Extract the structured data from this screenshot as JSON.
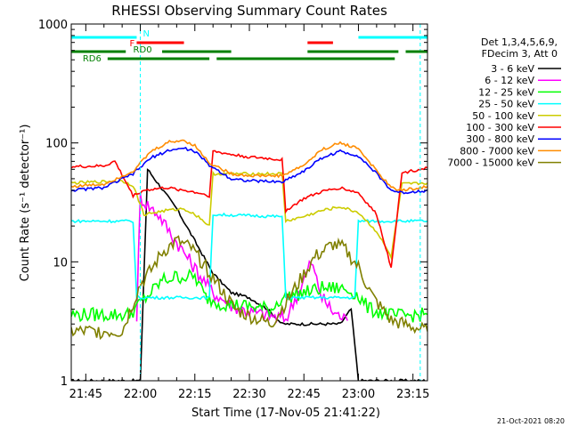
{
  "chart_data": {
    "type": "line",
    "title": "RHESSI Observing Summary Count Rates",
    "xlabel": "Start Time (17-Nov-05 21:41:22)",
    "ylabel": "Count Rate (s⁻¹ detector⁻¹)",
    "yscale": "log",
    "ylim": [
      1,
      1000
    ],
    "xlim": [
      "21:41",
      "23:19"
    ],
    "xticks": [
      "21:45",
      "22:00",
      "22:15",
      "22:30",
      "22:45",
      "23:00",
      "23:15"
    ],
    "yticks": [
      "1",
      "10",
      "100",
      "1000"
    ],
    "date_stamp": "21-Oct-2021 08:20",
    "legend_header": [
      "Det 1,3,4,5,6,9,",
      "FDecim 3, Att 0"
    ],
    "series": [
      {
        "name": "3 - 6 keV",
        "color": "#000000",
        "x": [
          "21:41",
          "21:58",
          "22:00",
          "22:02",
          "22:05",
          "22:10",
          "22:15",
          "22:20",
          "22:25",
          "22:30",
          "22:35",
          "22:39",
          "22:42",
          "22:45",
          "22:50",
          "22:55",
          "22:58",
          "23:00",
          "23:03",
          "23:10",
          "23:19"
        ],
        "y": [
          1.0,
          1.0,
          1.0,
          60,
          45,
          28,
          15,
          8,
          5.5,
          5,
          4,
          3,
          3,
          3,
          3,
          3,
          4,
          1.0,
          1.0,
          1.0,
          1.0
        ]
      },
      {
        "name": "6 - 12 keV",
        "color": "#ff00ff",
        "x": [
          "21:59",
          "22:00",
          "22:02",
          "22:05",
          "22:08",
          "22:12",
          "22:16",
          "22:20",
          "22:25",
          "22:30",
          "22:36",
          "22:40",
          "22:44",
          "22:47",
          "22:50",
          "22:53",
          "22:57"
        ],
        "y": [
          3.5,
          35,
          30,
          25,
          18,
          12,
          8,
          5.5,
          4.3,
          3.8,
          3.5,
          3.3,
          6,
          10,
          5,
          3.8,
          3.2
        ]
      },
      {
        "name": "12 - 25 keV",
        "color": "#00ff00",
        "x": [
          "21:41",
          "21:57",
          "22:00",
          "22:03",
          "22:06",
          "22:10",
          "22:15",
          "22:18",
          "22:22",
          "22:30",
          "22:36",
          "22:39",
          "22:45",
          "22:50",
          "22:55",
          "22:59",
          "23:03",
          "23:10",
          "23:19"
        ],
        "y": [
          3.6,
          3.6,
          4.5,
          5.5,
          7,
          7.5,
          7.5,
          5,
          4.5,
          4.2,
          4,
          5,
          5.5,
          6,
          6,
          5.5,
          4,
          3.5,
          3.6
        ]
      },
      {
        "name": "25 - 50 keV",
        "color": "#00ffff",
        "x": [
          "21:41",
          "21:58",
          "21:59",
          "22:05",
          "22:19",
          "22:20",
          "22:39",
          "22:40",
          "22:50",
          "22:59",
          "23:00",
          "23:10",
          "23:13",
          "23:19"
        ],
        "y": [
          22,
          22,
          5,
          5,
          5,
          25,
          24,
          5,
          5,
          5,
          22,
          22,
          22,
          22
        ]
      },
      {
        "name": "50 - 100 keV",
        "color": "#cccc00",
        "x": [
          "21:41",
          "21:55",
          "21:58",
          "22:01",
          "22:07",
          "22:12",
          "22:16",
          "22:19",
          "22:20",
          "22:30",
          "22:39",
          "22:40",
          "22:45",
          "22:50",
          "22:55",
          "23:00",
          "23:05",
          "23:09",
          "23:12",
          "23:19"
        ],
        "y": [
          46,
          48,
          44,
          25,
          27,
          28,
          24,
          20,
          55,
          55,
          55,
          22,
          24,
          27,
          29,
          26,
          18,
          11,
          45,
          46
        ]
      },
      {
        "name": "100 - 300 keV",
        "color": "#ff0000",
        "x": [
          "21:41",
          "21:50",
          "21:53",
          "21:58",
          "22:01",
          "22:07",
          "22:12",
          "22:16",
          "22:19",
          "22:20",
          "22:25",
          "22:30",
          "22:35",
          "22:39",
          "22:40",
          "22:45",
          "22:50",
          "22:55",
          "23:00",
          "23:05",
          "23:09",
          "23:12",
          "23:19"
        ],
        "y": [
          63,
          64,
          70,
          36,
          40,
          42,
          40,
          38,
          36,
          85,
          80,
          76,
          74,
          72,
          27,
          34,
          39,
          42,
          38,
          25,
          9,
          56,
          62
        ]
      },
      {
        "name": "300 - 800 keV",
        "color": "#0000ff",
        "x": [
          "21:41",
          "21:50",
          "21:58",
          "22:03",
          "22:08",
          "22:12",
          "22:15",
          "22:19",
          "22:25",
          "22:30",
          "22:39",
          "22:45",
          "22:50",
          "22:55",
          "23:00",
          "23:05",
          "23:09",
          "23:12",
          "23:19"
        ],
        "y": [
          40,
          42,
          55,
          75,
          87,
          90,
          85,
          65,
          50,
          48,
          47,
          58,
          75,
          85,
          78,
          55,
          40,
          38,
          40
        ]
      },
      {
        "name": "800 - 7000 keV",
        "color": "#ff8c00",
        "x": [
          "21:41",
          "21:50",
          "21:58",
          "22:03",
          "22:08",
          "22:12",
          "22:15",
          "22:19",
          "22:25",
          "22:30",
          "22:39",
          "22:45",
          "22:50",
          "22:55",
          "23:00",
          "23:05",
          "23:09",
          "23:12",
          "23:19"
        ],
        "y": [
          43,
          45,
          58,
          85,
          102,
          105,
          95,
          68,
          55,
          53,
          53,
          65,
          88,
          100,
          90,
          58,
          42,
          40,
          43
        ]
      },
      {
        "name": "7000 - 15000 keV",
        "color": "#808000",
        "x": [
          "21:41",
          "21:55",
          "22:00",
          "22:03",
          "22:06",
          "22:10",
          "22:14",
          "22:18",
          "22:22",
          "22:26",
          "22:30",
          "22:36",
          "22:40",
          "22:44",
          "22:48",
          "22:53",
          "22:56",
          "23:00",
          "23:04",
          "23:09",
          "23:19"
        ],
        "y": [
          2.6,
          2.6,
          6.5,
          8.5,
          12,
          15,
          13,
          9,
          6,
          4,
          3.5,
          3,
          4.5,
          7,
          11,
          14,
          13,
          9,
          5,
          3.2,
          2.6
        ]
      }
    ],
    "flags": [
      {
        "label": "N",
        "color": "#00ffff",
        "row": "top",
        "segments": [
          [
            "21:41",
            "21:59"
          ],
          [
            "23:00",
            "23:19"
          ]
        ]
      },
      {
        "label": "F",
        "color": "#ff0000",
        "row": "top2",
        "segments": [
          [
            "21:59",
            "22:12"
          ],
          [
            "22:46",
            "22:53"
          ]
        ]
      },
      {
        "label": "RD0",
        "color": "#008000",
        "row": "mid",
        "segments": [
          [
            "21:41",
            "21:56"
          ],
          [
            "22:06",
            "22:25"
          ],
          [
            "22:46",
            "23:11"
          ],
          [
            "23:13",
            "23:19"
          ]
        ]
      },
      {
        "label": "RD6",
        "color": "#008000",
        "row": "low",
        "segments": [
          [
            "21:51",
            "22:19"
          ],
          [
            "22:21",
            "23:10"
          ]
        ]
      }
    ],
    "vlines": [
      "22:00",
      "23:17"
    ]
  }
}
